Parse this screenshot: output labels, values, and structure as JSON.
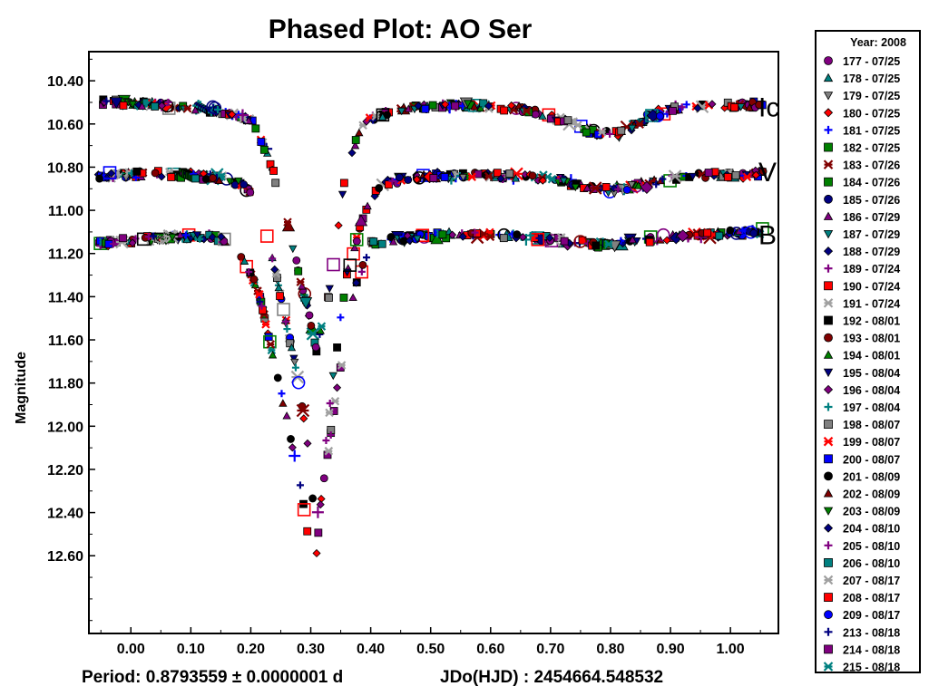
{
  "chart_data": {
    "type": "scatter",
    "title": "Phased Plot: AO Ser",
    "ylabel": "Magnitude",
    "xlim": [
      -0.07,
      1.08
    ],
    "ylim": [
      10.265,
      12.96
    ],
    "y_inverted": true,
    "x_ticks": [
      "0.00",
      "0.10",
      "0.20",
      "0.30",
      "0.40",
      "0.50",
      "0.60",
      "0.70",
      "0.80",
      "0.90",
      "1.00"
    ],
    "y_ticks": [
      "10.40",
      "10.60",
      "10.80",
      "11.00",
      "11.20",
      "11.40",
      "11.60",
      "11.80",
      "12.00",
      "12.20",
      "12.40",
      "12.60"
    ],
    "footer_period": "Period: 0.8793559 ± 0.0000001 d",
    "footer_epoch": "JDo(HJD) : 2454664.548532",
    "band_labels": [
      {
        "label": "Ic",
        "mag": 10.52
      },
      {
        "label": "V",
        "mag": 10.82
      },
      {
        "label": "B",
        "mag": 11.11
      }
    ],
    "light_curves": {
      "Ic": [
        [
          -0.05,
          10.5
        ],
        [
          0.05,
          10.51
        ],
        [
          0.15,
          10.54
        ],
        [
          0.2,
          10.58
        ],
        [
          0.23,
          10.75
        ],
        [
          0.26,
          11.05
        ],
        [
          0.29,
          11.4
        ],
        [
          0.31,
          11.65
        ],
        [
          0.33,
          11.4
        ],
        [
          0.36,
          10.8
        ],
        [
          0.39,
          10.58
        ],
        [
          0.45,
          10.53
        ],
        [
          0.55,
          10.51
        ],
        [
          0.65,
          10.53
        ],
        [
          0.72,
          10.58
        ],
        [
          0.78,
          10.65
        ],
        [
          0.82,
          10.64
        ],
        [
          0.86,
          10.57
        ],
        [
          0.92,
          10.52
        ],
        [
          1.05,
          10.51
        ]
      ],
      "V": [
        [
          -0.05,
          10.84
        ],
        [
          0.05,
          10.83
        ],
        [
          0.15,
          10.85
        ],
        [
          0.19,
          10.88
        ],
        [
          0.22,
          11.05
        ],
        [
          0.25,
          11.4
        ],
        [
          0.28,
          11.8
        ],
        [
          0.3,
          12.2
        ],
        [
          0.31,
          12.6
        ],
        [
          0.32,
          12.2
        ],
        [
          0.34,
          11.7
        ],
        [
          0.36,
          11.3
        ],
        [
          0.39,
          11.0
        ],
        [
          0.42,
          10.87
        ],
        [
          0.5,
          10.84
        ],
        [
          0.6,
          10.84
        ],
        [
          0.7,
          10.85
        ],
        [
          0.76,
          10.89
        ],
        [
          0.8,
          10.91
        ],
        [
          0.86,
          10.88
        ],
        [
          0.92,
          10.84
        ],
        [
          1.05,
          10.83
        ]
      ],
      "B": [
        [
          -0.05,
          11.15
        ],
        [
          0.05,
          11.13
        ],
        [
          0.13,
          11.12
        ],
        [
          0.17,
          11.15
        ],
        [
          0.21,
          11.35
        ],
        [
          0.24,
          11.7
        ],
        [
          0.27,
          12.1
        ],
        [
          0.29,
          12.4
        ],
        [
          0.3,
          12.58
        ],
        [
          0.32,
          12.3
        ],
        [
          0.34,
          11.9
        ],
        [
          0.37,
          11.4
        ],
        [
          0.4,
          11.15
        ],
        [
          0.45,
          11.13
        ],
        [
          0.55,
          11.11
        ],
        [
          0.65,
          11.12
        ],
        [
          0.72,
          11.14
        ],
        [
          0.78,
          11.16
        ],
        [
          0.84,
          11.14
        ],
        [
          0.92,
          11.12
        ],
        [
          1.05,
          11.1
        ]
      ]
    },
    "legend_title": "Year: 2008",
    "legend_position": "right",
    "series": [
      {
        "name": "177 - 07/25",
        "color": "#800080",
        "marker": "circle"
      },
      {
        "name": "178 - 07/25",
        "color": "#008080",
        "marker": "triangle"
      },
      {
        "name": "179 - 07/25",
        "color": "#808080",
        "marker": "triangle-down"
      },
      {
        "name": "180 - 07/25",
        "color": "#ff0000",
        "marker": "diamond"
      },
      {
        "name": "181 - 07/25",
        "color": "#0000ff",
        "marker": "plus"
      },
      {
        "name": "182 - 07/25",
        "color": "#008000",
        "marker": "square"
      },
      {
        "name": "183 - 07/26",
        "color": "#800000",
        "marker": "star"
      },
      {
        "name": "184 - 07/26",
        "color": "#008000",
        "marker": "square"
      },
      {
        "name": "185 - 07/26",
        "color": "#000080",
        "marker": "circle"
      },
      {
        "name": "186 - 07/29",
        "color": "#800080",
        "marker": "triangle"
      },
      {
        "name": "187 - 07/29",
        "color": "#008080",
        "marker": "triangle-down"
      },
      {
        "name": "188 - 07/29",
        "color": "#000080",
        "marker": "diamond"
      },
      {
        "name": "189 - 07/24",
        "color": "#800080",
        "marker": "plus"
      },
      {
        "name": "190 - 07/24",
        "color": "#ff0000",
        "marker": "square"
      },
      {
        "name": "191 - 07/24",
        "color": "#a0a0a0",
        "marker": "star"
      },
      {
        "name": "192 - 08/01",
        "color": "#000000",
        "marker": "square"
      },
      {
        "name": "193 - 08/01",
        "color": "#800000",
        "marker": "circle"
      },
      {
        "name": "194 - 08/01",
        "color": "#008000",
        "marker": "triangle"
      },
      {
        "name": "195 - 08/04",
        "color": "#000080",
        "marker": "triangle-down"
      },
      {
        "name": "196 - 08/04",
        "color": "#800080",
        "marker": "diamond"
      },
      {
        "name": "197 - 08/04",
        "color": "#008080",
        "marker": "plus"
      },
      {
        "name": "198 - 08/07",
        "color": "#808080",
        "marker": "square"
      },
      {
        "name": "199 - 08/07",
        "color": "#ff0000",
        "marker": "star"
      },
      {
        "name": "200 - 08/07",
        "color": "#0000ff",
        "marker": "square"
      },
      {
        "name": "201 - 08/09",
        "color": "#000000",
        "marker": "circle"
      },
      {
        "name": "202 - 08/09",
        "color": "#800000",
        "marker": "triangle"
      },
      {
        "name": "203 - 08/09",
        "color": "#008000",
        "marker": "triangle-down"
      },
      {
        "name": "204 - 08/10",
        "color": "#000080",
        "marker": "diamond"
      },
      {
        "name": "205 - 08/10",
        "color": "#800080",
        "marker": "plus"
      },
      {
        "name": "206 - 08/10",
        "color": "#008080",
        "marker": "square"
      },
      {
        "name": "207 - 08/17",
        "color": "#a0a0a0",
        "marker": "star"
      },
      {
        "name": "208 - 08/17",
        "color": "#ff0000",
        "marker": "square"
      },
      {
        "name": "209 - 08/17",
        "color": "#0000ff",
        "marker": "circle"
      },
      {
        "name": "213 - 08/18",
        "color": "#000080",
        "marker": "plus"
      },
      {
        "name": "214 - 08/18",
        "color": "#800080",
        "marker": "square"
      },
      {
        "name": "215 - 08/18",
        "color": "#008080",
        "marker": "star"
      }
    ]
  }
}
